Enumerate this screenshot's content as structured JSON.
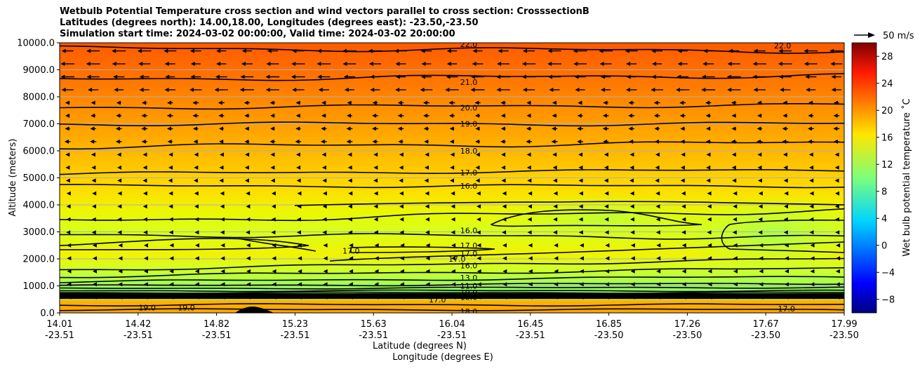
{
  "title": {
    "line1": "Wetbulb Potential Temperature cross section and wind vectors parallel to cross section: CrosssectionB",
    "line2": "Latitudes (degrees north): 14.00,18.00, Longitudes (degrees east): -23.50,-23.50",
    "line3": "Simulation start time: 2024-03-02 00:00:00, Valid time: 2024-03-02 20:00:00"
  },
  "quiver_key": "50 m/s",
  "chart_data": {
    "type": "heatmap",
    "subtype": "cross-section filled contour with contour lines and wind vectors",
    "ylabel": "Altitude (meters)",
    "xlabel_line1": "Latitude (degrees N)",
    "xlabel_line2": "Longitude (degrees E)",
    "ylim": [
      0,
      10000
    ],
    "y_ticks": [
      "0.0",
      "1000.0",
      "2000.0",
      "3000.0",
      "4000.0",
      "5000.0",
      "6000.0",
      "7000.0",
      "8000.0",
      "9000.0",
      "10000.0"
    ],
    "x_ticks": [
      {
        "lat": "14.01",
        "lon": "-23.51"
      },
      {
        "lat": "14.42",
        "lon": "-23.51"
      },
      {
        "lat": "14.82",
        "lon": "-23.51"
      },
      {
        "lat": "15.23",
        "lon": "-23.51"
      },
      {
        "lat": "15.63",
        "lon": "-23.51"
      },
      {
        "lat": "16.04",
        "lon": "-23.51"
      },
      {
        "lat": "16.45",
        "lon": "-23.51"
      },
      {
        "lat": "16.85",
        "lon": "-23.50"
      },
      {
        "lat": "17.26",
        "lon": "-23.50"
      },
      {
        "lat": "17.67",
        "lon": "-23.50"
      },
      {
        "lat": "17.99",
        "lon": "-23.50"
      }
    ],
    "horizontal_grid": true,
    "colorbar": {
      "label": "Wet bulb potential temperature $^\\circ$C",
      "range": [
        -10,
        30
      ],
      "ticks": [
        "−8",
        "−4",
        "0",
        "4",
        "8",
        "12",
        "16",
        "20",
        "24",
        "28"
      ],
      "colormap": "jet"
    },
    "contour_labels": [
      {
        "text": "22.0",
        "x": 0.5,
        "alt": 9950
      },
      {
        "text": "22.0",
        "x": 0.9,
        "alt": 9900
      },
      {
        "text": "21.0",
        "x": 0.5,
        "alt": 8550
      },
      {
        "text": "20.0",
        "x": 0.5,
        "alt": 7600
      },
      {
        "text": "19.0",
        "x": 0.5,
        "alt": 7000
      },
      {
        "text": "18.0",
        "x": 0.5,
        "alt": 6000
      },
      {
        "text": "17.0",
        "x": 0.5,
        "alt": 5200
      },
      {
        "text": "16.0",
        "x": 0.5,
        "alt": 4700
      },
      {
        "text": "16.0",
        "x": 0.5,
        "alt": 3050
      },
      {
        "text": "17.0",
        "x": 0.5,
        "alt": 2500
      },
      {
        "text": "17.0",
        "x": 0.5,
        "alt": 2200
      },
      {
        "text": "17.0",
        "x": 0.35,
        "alt": 2300
      },
      {
        "text": "17.0",
        "x": 0.485,
        "alt": 2000
      },
      {
        "text": "16.0",
        "x": 0.5,
        "alt": 1750
      },
      {
        "text": "13.0",
        "x": 0.5,
        "alt": 1300
      },
      {
        "text": "11.0",
        "x": 0.5,
        "alt": 1000
      },
      {
        "text": "10.0",
        "x": 0.5,
        "alt": 750
      },
      {
        "text": "18.0",
        "x": 0.5,
        "alt": 580
      },
      {
        "text": "17.0",
        "x": 0.46,
        "alt": 500
      },
      {
        "text": "18.0",
        "x": 0.5,
        "alt": 50
      },
      {
        "text": "19.0",
        "x": 0.09,
        "alt": 200
      },
      {
        "text": "19.0",
        "x": 0.14,
        "alt": 200
      },
      {
        "text": "17.0",
        "x": 0.905,
        "alt": 150
      }
    ]
  }
}
